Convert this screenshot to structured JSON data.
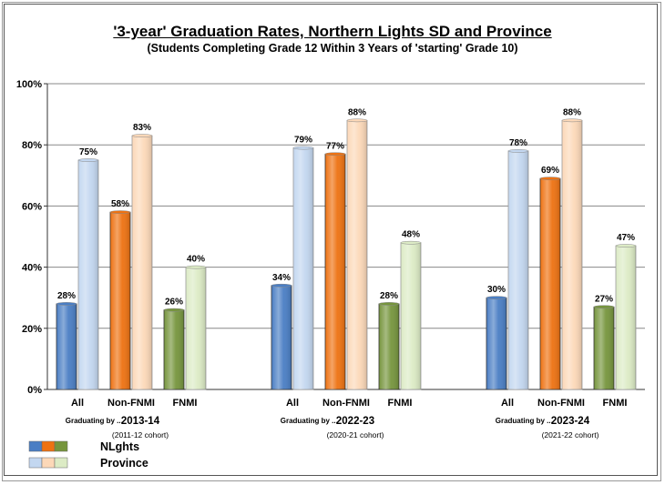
{
  "chart_data": {
    "type": "bar",
    "title": "'3-year' Graduation Rates, Northern Lights SD and Province",
    "subtitle": "(Students Completing Grade 12 Within 3 Years of 'starting' Grade 10)",
    "ylim": [
      0,
      100
    ],
    "yticks": [
      "0%",
      "20%",
      "40%",
      "60%",
      "80%",
      "100%"
    ],
    "groups": [
      {
        "year": "2013-14",
        "cohort": "(2011-12 cohort)",
        "graduating_label": "Graduating by ...",
        "categories": [
          "All",
          "Non-FNMI",
          "FNMI"
        ],
        "nlghts": [
          28,
          58,
          26
        ],
        "province": [
          75,
          83,
          40
        ]
      },
      {
        "year": "2022-23",
        "cohort": "(2020-21 cohort)",
        "graduating_label": "Graduating by ...",
        "categories": [
          "All",
          "Non-FNMI",
          "FNMI"
        ],
        "nlghts": [
          34,
          77,
          28
        ],
        "province": [
          79,
          88,
          48
        ]
      },
      {
        "year": "2023-24",
        "cohort": "(2021-22 cohort)",
        "graduating_label": "Graduating by ...",
        "categories": [
          "All",
          "Non-FNMI",
          "FNMI"
        ],
        "nlghts": [
          30,
          69,
          27
        ],
        "province": [
          78,
          88,
          47
        ]
      }
    ],
    "data_labels": {
      "nlghts": [
        [
          "28%",
          "58%",
          "26%"
        ],
        [
          "34%",
          "77%",
          "28%"
        ],
        [
          "30%",
          "69%",
          "27%"
        ]
      ],
      "province": [
        [
          "75%",
          "83%",
          "40%"
        ],
        [
          "79%",
          "88%",
          "48%"
        ],
        [
          "78%",
          "88%",
          "47%"
        ]
      ]
    },
    "legend": {
      "placement": "bottom-left",
      "entries": [
        {
          "name": "NLghts",
          "colors": [
            "#4a7ec4",
            "#ee7212",
            "#76953d"
          ]
        },
        {
          "name": "Province",
          "colors": [
            "#c3d7f0",
            "#fcd8b8",
            "#dcebc5"
          ]
        }
      ]
    },
    "colors": {
      "nlghts": [
        "#4a7ec4",
        "#ee7212",
        "#76953d"
      ],
      "province": [
        "#c3d7f0",
        "#fcd8b8",
        "#dcebc5"
      ]
    },
    "grid": true
  }
}
